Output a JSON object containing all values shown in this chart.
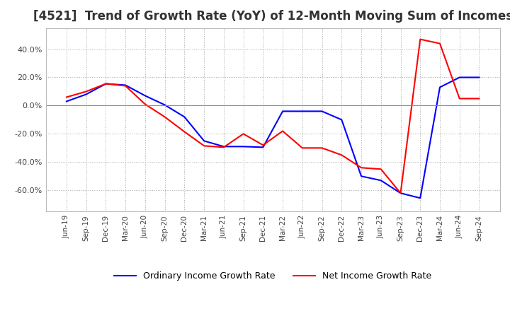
{
  "title": "[4521]  Trend of Growth Rate (YoY) of 12-Month Moving Sum of Incomes",
  "title_fontsize": 12,
  "ylim": [
    -0.75,
    0.55
  ],
  "yticks": [
    -0.6,
    -0.4,
    -0.2,
    0.0,
    0.2,
    0.4
  ],
  "background_color": "#ffffff",
  "grid_color": "#aaaaaa",
  "ordinary_color": "#0000ff",
  "net_color": "#ff0000",
  "legend_labels": [
    "Ordinary Income Growth Rate",
    "Net Income Growth Rate"
  ],
  "x_labels": [
    "Jun-19",
    "Sep-19",
    "Dec-19",
    "Mar-20",
    "Jun-20",
    "Sep-20",
    "Dec-20",
    "Mar-21",
    "Jun-21",
    "Sep-21",
    "Dec-21",
    "Mar-22",
    "Jun-22",
    "Sep-22",
    "Dec-22",
    "Mar-23",
    "Jun-23",
    "Sep-23",
    "Dec-23",
    "Mar-24",
    "Jun-24",
    "Sep-24"
  ],
  "ordinary": [
    0.03,
    0.08,
    0.155,
    0.145,
    0.07,
    0.005,
    -0.08,
    -0.25,
    -0.29,
    -0.29,
    -0.295,
    -0.04,
    -0.04,
    -0.04,
    -0.1,
    -0.5,
    -0.53,
    -0.62,
    -0.655,
    0.13,
    0.2,
    0.2
  ],
  "net": [
    0.06,
    0.1,
    0.155,
    0.14,
    0.01,
    -0.08,
    -0.185,
    -0.285,
    -0.295,
    -0.2,
    -0.28,
    -0.18,
    -0.3,
    -0.3,
    -0.35,
    -0.44,
    -0.45,
    -0.62,
    0.47,
    0.44,
    0.05,
    0.05
  ]
}
